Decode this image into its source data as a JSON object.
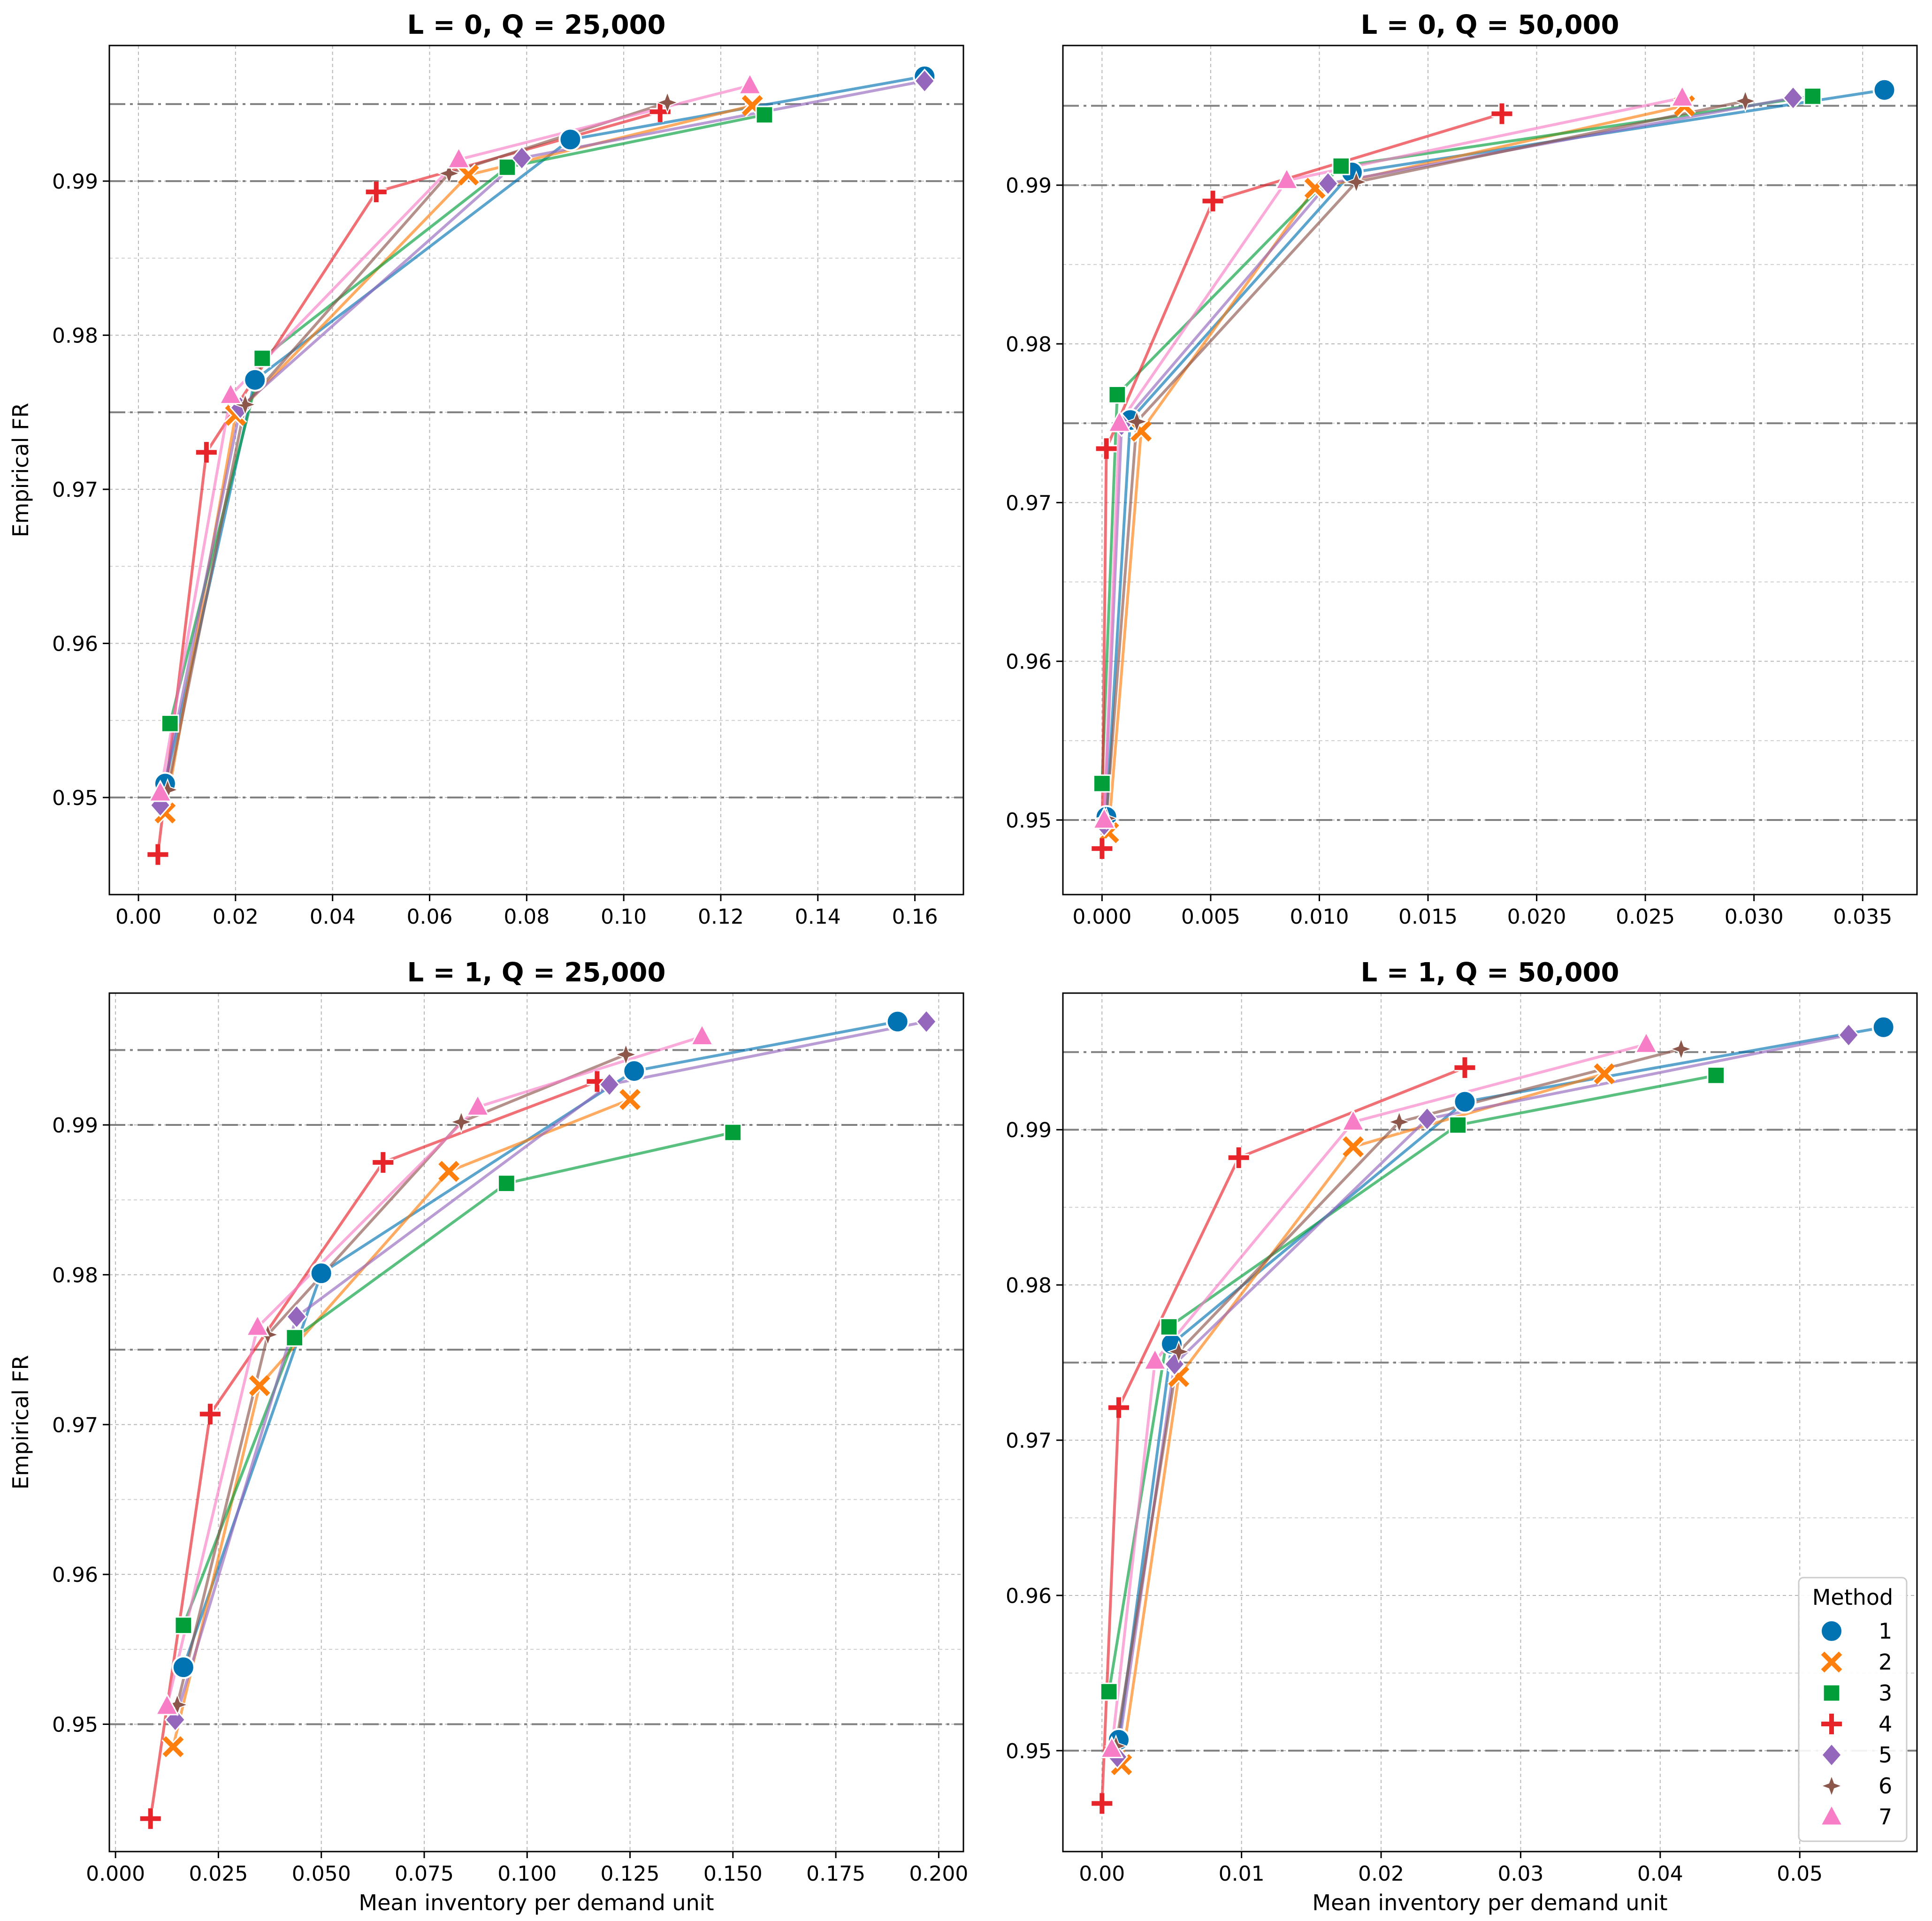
{
  "figure": {
    "legend_title": "Method",
    "legend_entries": [
      "1",
      "2",
      "3",
      "4",
      "5",
      "6",
      "7"
    ],
    "legend_location": "lower-right",
    "method_styles": [
      {
        "color": "#0173b2",
        "marker": "circle"
      },
      {
        "color": "#ff7f0e",
        "marker": "x"
      },
      {
        "color": "#029e3a",
        "marker": "square"
      },
      {
        "color": "#e8242b",
        "marker": "plus"
      },
      {
        "color": "#9467bd",
        "marker": "diamond"
      },
      {
        "color": "#8c564b",
        "marker": "star"
      },
      {
        "color": "#f77ec6",
        "marker": "triangle"
      }
    ]
  },
  "chart_data": [
    {
      "type": "line",
      "title": "L = 0, Q = 25,000",
      "xlabel": "",
      "ylabel": "Empirical FR",
      "xlim": [
        -0.006,
        0.17
      ],
      "ylim": [
        0.9437,
        0.9988
      ],
      "xticks": [
        "0.00",
        "0.02",
        "0.04",
        "0.06",
        "0.08",
        "0.10",
        "0.12",
        "0.14",
        "0.16"
      ],
      "xtick_values": [
        0,
        0.02,
        0.04,
        0.06,
        0.08,
        0.1,
        0.12,
        0.14,
        0.16
      ],
      "yticks": [
        "0.95",
        "0.96",
        "0.97",
        "0.98",
        "0.99"
      ],
      "ytick_values": [
        0.95,
        0.96,
        0.97,
        0.98,
        0.99
      ],
      "hlines": [
        0.95,
        0.975,
        0.99,
        0.995
      ],
      "grid": true,
      "series": [
        {
          "name": "1",
          "x": [
            0.0055,
            0.024,
            0.089,
            0.162
          ],
          "y": [
            0.9509,
            0.9771,
            0.9927,
            0.9968
          ]
        },
        {
          "name": "2",
          "x": [
            0.0055,
            0.02,
            0.068,
            0.1265
          ],
          "y": [
            0.949,
            0.9748,
            0.9904,
            0.9949
          ]
        },
        {
          "name": "3",
          "x": [
            0.0065,
            0.0255,
            0.076,
            0.129
          ],
          "y": [
            0.9548,
            0.9785,
            0.9909,
            0.9943
          ]
        },
        {
          "name": "4",
          "x": [
            0.004,
            0.014,
            0.049,
            0.1075
          ],
          "y": [
            0.9463,
            0.9724,
            0.9893,
            0.9945
          ]
        },
        {
          "name": "5",
          "x": [
            0.0045,
            0.021,
            0.079,
            0.162
          ],
          "y": [
            0.9495,
            0.9753,
            0.9915,
            0.9965
          ]
        },
        {
          "name": "6",
          "x": [
            0.006,
            0.022,
            0.064,
            0.109
          ],
          "y": [
            0.9505,
            0.9755,
            0.9905,
            0.9951
          ]
        },
        {
          "name": "7",
          "x": [
            0.0045,
            0.019,
            0.066,
            0.126
          ],
          "y": [
            0.9503,
            0.9761,
            0.9914,
            0.9962
          ]
        }
      ]
    },
    {
      "type": "line",
      "title": "L = 0, Q = 50,000",
      "xlabel": "",
      "ylabel": "",
      "xlim": [
        -0.0018,
        0.0375
      ],
      "ylim": [
        0.9453,
        0.9988
      ],
      "xticks": [
        "0.000",
        "0.005",
        "0.010",
        "0.015",
        "0.020",
        "0.025",
        "0.030",
        "0.035"
      ],
      "xtick_values": [
        0,
        0.005,
        0.01,
        0.015,
        0.02,
        0.025,
        0.03,
        0.035
      ],
      "yticks": [
        "0.95",
        "0.96",
        "0.97",
        "0.98",
        "0.99"
      ],
      "ytick_values": [
        0.95,
        0.96,
        0.97,
        0.98,
        0.99
      ],
      "hlines": [
        0.95,
        0.975,
        0.99,
        0.995
      ],
      "grid": true,
      "series": [
        {
          "name": "1",
          "x": [
            0.0002,
            0.0013,
            0.0115,
            0.036
          ],
          "y": [
            0.9502,
            0.9752,
            0.9908,
            0.996
          ]
        },
        {
          "name": "2",
          "x": [
            0.0003,
            0.0018,
            0.0098,
            0.0268
          ],
          "y": [
            0.9492,
            0.9745,
            0.9898,
            0.995
          ]
        },
        {
          "name": "3",
          "x": [
            0.0,
            0.0007,
            0.011,
            0.0327
          ],
          "y": [
            0.9523,
            0.9768,
            0.9912,
            0.9956
          ]
        },
        {
          "name": "4",
          "x": [
            0.0,
            0.0002,
            0.0051,
            0.0184
          ],
          "y": [
            0.9482,
            0.9734,
            0.989,
            0.9945
          ]
        },
        {
          "name": "5",
          "x": [
            0.0001,
            0.0009,
            0.0104,
            0.0318
          ],
          "y": [
            0.9497,
            0.9749,
            0.9901,
            0.9955
          ]
        },
        {
          "name": "6",
          "x": [
            0.0002,
            0.0016,
            0.0117,
            0.0296
          ],
          "y": [
            0.9501,
            0.9751,
            0.9902,
            0.9953
          ]
        },
        {
          "name": "7",
          "x": [
            0.0001,
            0.0008,
            0.0085,
            0.0267
          ],
          "y": [
            0.95,
            0.975,
            0.9903,
            0.9955
          ]
        }
      ]
    },
    {
      "type": "line",
      "title": "L = 1, Q = 25,000",
      "xlabel": "Mean inventory per demand unit",
      "ylabel": "Empirical FR",
      "xlim": [
        -0.0015,
        0.206
      ],
      "ylim": [
        0.9415,
        0.9988
      ],
      "xticks": [
        "0.000",
        "0.025",
        "0.050",
        "0.075",
        "0.100",
        "0.125",
        "0.150",
        "0.175",
        "0.200"
      ],
      "xtick_values": [
        0,
        0.025,
        0.05,
        0.075,
        0.1,
        0.125,
        0.15,
        0.175,
        0.2
      ],
      "yticks": [
        "0.95",
        "0.96",
        "0.97",
        "0.98",
        "0.99"
      ],
      "ytick_values": [
        0.95,
        0.96,
        0.97,
        0.98,
        0.99
      ],
      "hlines": [
        0.95,
        0.975,
        0.99,
        0.995
      ],
      "grid": true,
      "series": [
        {
          "name": "1",
          "x": [
            0.0165,
            0.05,
            0.126,
            0.19
          ],
          "y": [
            0.9538,
            0.9801,
            0.9936,
            0.9969
          ]
        },
        {
          "name": "2",
          "x": [
            0.014,
            0.035,
            0.081,
            0.125
          ],
          "y": [
            0.9485,
            0.9726,
            0.9869,
            0.9917
          ]
        },
        {
          "name": "3",
          "x": [
            0.0165,
            0.0435,
            0.095,
            0.15
          ],
          "y": [
            0.9566,
            0.9758,
            0.9861,
            0.9895
          ]
        },
        {
          "name": "4",
          "x": [
            0.0085,
            0.023,
            0.065,
            0.117
          ],
          "y": [
            0.9437,
            0.9707,
            0.9875,
            0.9929
          ]
        },
        {
          "name": "5",
          "x": [
            0.0145,
            0.044,
            0.12,
            0.197
          ],
          "y": [
            0.9503,
            0.9772,
            0.9927,
            0.9969
          ]
        },
        {
          "name": "6",
          "x": [
            0.015,
            0.037,
            0.084,
            0.124
          ],
          "y": [
            0.9513,
            0.976,
            0.9902,
            0.9947
          ]
        },
        {
          "name": "7",
          "x": [
            0.0125,
            0.0345,
            0.088,
            0.1425
          ],
          "y": [
            0.9512,
            0.9765,
            0.9912,
            0.9959
          ]
        }
      ]
    },
    {
      "type": "line",
      "title": "L = 1, Q = 50,000",
      "xlabel": "Mean inventory per demand unit",
      "ylabel": "",
      "xlim": [
        -0.0028,
        0.0584
      ],
      "ylim": [
        0.9435,
        0.9988
      ],
      "xticks": [
        "0.00",
        "0.01",
        "0.02",
        "0.03",
        "0.04",
        "0.05"
      ],
      "xtick_values": [
        0,
        0.01,
        0.02,
        0.03,
        0.04,
        0.05
      ],
      "yticks": [
        "0.95",
        "0.96",
        "0.97",
        "0.98",
        "0.99"
      ],
      "ytick_values": [
        0.95,
        0.96,
        0.97,
        0.98,
        0.99
      ],
      "hlines": [
        0.95,
        0.975,
        0.99,
        0.995
      ],
      "grid": true,
      "series": [
        {
          "name": "1",
          "x": [
            0.0012,
            0.005,
            0.026,
            0.056
          ],
          "y": [
            0.9507,
            0.9762,
            0.9918,
            0.9966
          ]
        },
        {
          "name": "2",
          "x": [
            0.0014,
            0.0055,
            0.018,
            0.036
          ],
          "y": [
            0.9491,
            0.9741,
            0.9889,
            0.9936
          ]
        },
        {
          "name": "3",
          "x": [
            0.0005,
            0.0048,
            0.0255,
            0.044
          ],
          "y": [
            0.9538,
            0.9773,
            0.9903,
            0.9935
          ]
        },
        {
          "name": "4",
          "x": [
            0.0,
            0.0012,
            0.0098,
            0.026
          ],
          "y": [
            0.9466,
            0.9721,
            0.9882,
            0.994
          ]
        },
        {
          "name": "5",
          "x": [
            0.0011,
            0.0052,
            0.0233,
            0.0535
          ],
          "y": [
            0.9496,
            0.9749,
            0.9907,
            0.9961
          ]
        },
        {
          "name": "6",
          "x": [
            0.001,
            0.0055,
            0.0213,
            0.0415
          ],
          "y": [
            0.9503,
            0.9757,
            0.9905,
            0.9952
          ]
        },
        {
          "name": "7",
          "x": [
            0.0007,
            0.0038,
            0.018,
            0.039
          ],
          "y": [
            0.9501,
            0.9751,
            0.9905,
            0.9955
          ]
        }
      ]
    }
  ]
}
